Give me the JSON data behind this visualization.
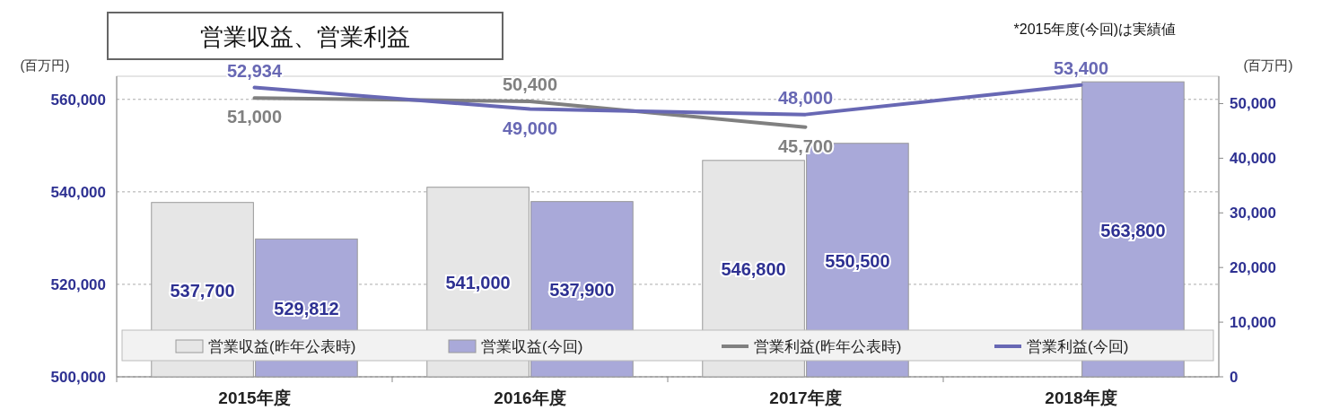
{
  "chart_data": {
    "type": "bar",
    "title": "営業収益、営業利益",
    "ylabel": "(百万円)",
    "y2label": "(百万円)",
    "annotations": [
      "*2015年度(今回)は実績値"
    ],
    "categories": [
      "2015年度",
      "2016年度",
      "2017年度",
      "2018年度"
    ],
    "series": [
      {
        "name": "営業収益(昨年公表時)",
        "color": "#e6e6e6",
        "values": [
          537700,
          541000,
          546800,
          null
        ],
        "value_labels": [
          "537,700",
          "541,000",
          "546,800",
          null
        ]
      },
      {
        "name": "営業収益(今回)",
        "color": "#a9a9d9",
        "values": [
          529812,
          537900,
          550500,
          563800
        ],
        "value_labels": [
          "529,812",
          "537,900",
          "550,500",
          "563,800"
        ]
      },
      {
        "name": "営業利益(昨年公表時)",
        "type": "line",
        "axis": "y2",
        "color": "#808080",
        "values": [
          51000,
          50400,
          45700,
          null
        ],
        "value_labels": [
          "51,000",
          "50,400",
          "45,700",
          null
        ]
      },
      {
        "name": "営業利益(今回)",
        "type": "line",
        "axis": "y2",
        "color": "#6868b4",
        "values": [
          52934,
          49000,
          48000,
          53400
        ],
        "value_labels": [
          "52,934",
          "49,000",
          "48,000",
          "53,400"
        ]
      }
    ],
    "ylim": [
      500000,
      565000
    ],
    "yticks": [
      {
        "value": 500000,
        "label": "500,000"
      },
      {
        "value": 520000,
        "label": "520,000"
      },
      {
        "value": 540000,
        "label": "540,000"
      },
      {
        "value": 560000,
        "label": "560,000"
      }
    ],
    "y2lim": [
      0,
      55000
    ],
    "y2ticks": [
      0,
      {
        "value": 10000,
        "label": "10,000"
      },
      {
        "value": 20000,
        "label": "20,000"
      },
      {
        "value": 30000,
        "label": "30,000"
      },
      {
        "value": 40000,
        "label": "40,000"
      },
      {
        "value": 50000,
        "label": "50,000"
      }
    ],
    "grid": "y",
    "legend": "bottom"
  }
}
